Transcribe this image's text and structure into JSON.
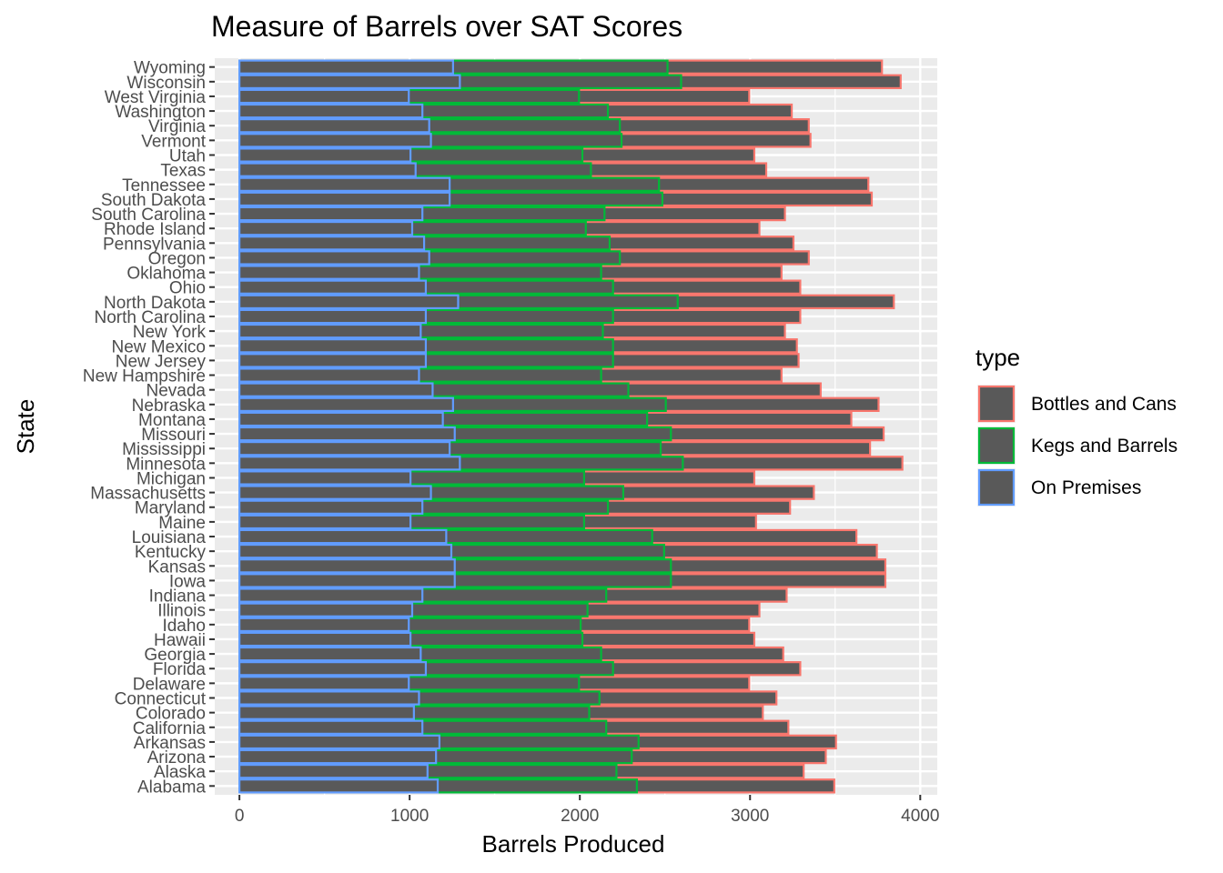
{
  "chart_data": {
    "type": "bar",
    "orientation": "horizontal",
    "stacked": false,
    "title": "Measure of Barrels over SAT Scores",
    "xlabel": "Barrels Produced",
    "ylabel": "State",
    "xlim": [
      -145,
      4100
    ],
    "x_ticks": [
      0,
      1000,
      2000,
      3000,
      4000
    ],
    "x_tick_labels": [
      "0",
      "1000",
      "2000",
      "3000",
      "4000"
    ],
    "grid": true,
    "legend": {
      "title": "type",
      "position": "right"
    },
    "categories": [
      "Alabama",
      "Alaska",
      "Arizona",
      "Arkansas",
      "California",
      "Colorado",
      "Connecticut",
      "Delaware",
      "Florida",
      "Georgia",
      "Hawaii",
      "Idaho",
      "Illinois",
      "Indiana",
      "Iowa",
      "Kansas",
      "Kentucky",
      "Louisiana",
      "Maine",
      "Maryland",
      "Massachusetts",
      "Michigan",
      "Minnesota",
      "Mississippi",
      "Missouri",
      "Montana",
      "Nebraska",
      "Nevada",
      "New Hampshire",
      "New Jersey",
      "New Mexico",
      "New York",
      "North Carolina",
      "North Dakota",
      "Ohio",
      "Oklahoma",
      "Oregon",
      "Pennsylvania",
      "Rhode Island",
      "South Carolina",
      "South Dakota",
      "Tennessee",
      "Texas",
      "Utah",
      "Vermont",
      "Virginia",
      "Washington",
      "West Virginia",
      "Wisconsin",
      "Wyoming"
    ],
    "series": [
      {
        "name": "Bottles and Cans",
        "color": "#F8766D",
        "values": [
          3495,
          3315,
          3445,
          3505,
          3225,
          3075,
          3155,
          2995,
          3295,
          3195,
          3025,
          2995,
          3055,
          3215,
          3795,
          3795,
          3745,
          3625,
          3035,
          3235,
          3375,
          3025,
          3895,
          3705,
          3785,
          3595,
          3755,
          3415,
          3185,
          3285,
          3275,
          3205,
          3295,
          3845,
          3295,
          3185,
          3345,
          3255,
          3055,
          3205,
          3715,
          3695,
          3095,
          3025,
          3355,
          3345,
          3245,
          2995,
          3885,
          3775
        ]
      },
      {
        "name": "Kegs and Barrels",
        "color": "#00BA38",
        "values": [
          2335,
          2215,
          2305,
          2345,
          2155,
          2055,
          2115,
          1995,
          2195,
          2125,
          2015,
          2005,
          2045,
          2155,
          2535,
          2535,
          2495,
          2425,
          2025,
          2165,
          2255,
          2025,
          2605,
          2475,
          2535,
          2395,
          2505,
          2285,
          2125,
          2195,
          2195,
          2135,
          2195,
          2575,
          2195,
          2125,
          2235,
          2175,
          2035,
          2145,
          2485,
          2465,
          2065,
          2015,
          2245,
          2235,
          2165,
          1995,
          2595,
          2515
        ]
      },
      {
        "name": "On Premises",
        "color": "#619CFF",
        "values": [
          1165,
          1105,
          1155,
          1175,
          1075,
          1025,
          1055,
          995,
          1095,
          1065,
          1005,
          995,
          1015,
          1075,
          1265,
          1265,
          1245,
          1215,
          1005,
          1075,
          1125,
          1005,
          1295,
          1235,
          1265,
          1195,
          1255,
          1135,
          1055,
          1095,
          1095,
          1065,
          1095,
          1285,
          1095,
          1055,
          1115,
          1085,
          1015,
          1075,
          1235,
          1235,
          1035,
          1005,
          1125,
          1115,
          1075,
          995,
          1295,
          1255
        ]
      }
    ]
  }
}
